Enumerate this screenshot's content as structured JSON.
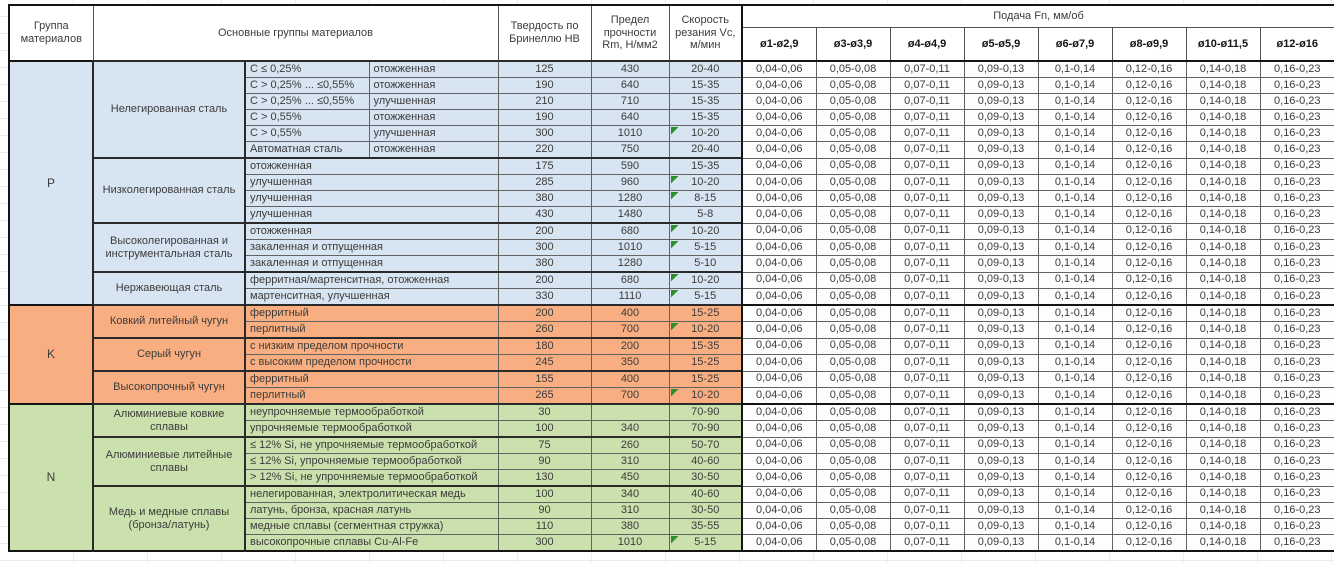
{
  "header": {
    "group_col": "Группа материалов",
    "materials_col": "Основные группы материалов",
    "hardness_col": "Твердость по Бринеллю HB",
    "strength_col": "Предел прочности Rm, Н/мм2",
    "speed_col": "Скорость резания Vc, м/мин",
    "feed_col": "Подача Fn, мм/об",
    "diameters": [
      "ø1-ø2,9",
      "ø3-ø3,9",
      "ø4-ø4,9",
      "ø5-ø5,9",
      "ø6-ø7,9",
      "ø8-ø9,9",
      "ø10-ø11,5",
      "ø12-ø16"
    ]
  },
  "feed_values": [
    "0,04-0,06",
    "0,05-0,08",
    "0,07-0,11",
    "0,09-0,13",
    "0,1-0,14",
    "0,12-0,16",
    "0,14-0,18",
    "0,16-0,23"
  ],
  "colors": {
    "group_p": "#D7E4F1",
    "group_k": "#F8AE80",
    "group_n": "#CAE0AD",
    "note_marker": "#2C8F2C"
  },
  "groups": [
    {
      "letter": "P",
      "color": "#D7E4F1",
      "subgroups": [
        {
          "name": "Нелегированная сталь",
          "rows": [
            {
              "details": [
                "C ≤ 0,25%",
                "отожженная"
              ],
              "hb": "125",
              "rm": "430",
              "vc": "20-40",
              "note": false
            },
            {
              "details": [
                "C > 0,25% ... ≤0,55%",
                "отожженная"
              ],
              "hb": "190",
              "rm": "640",
              "vc": "15-35",
              "note": false
            },
            {
              "details": [
                "C > 0,25% ... ≤0,55%",
                "улучшенная"
              ],
              "hb": "210",
              "rm": "710",
              "vc": "15-35",
              "note": false
            },
            {
              "details": [
                "C > 0,55%",
                "отожженная"
              ],
              "hb": "190",
              "rm": "640",
              "vc": "15-35",
              "note": false
            },
            {
              "details": [
                "C > 0,55%",
                "улучшенная"
              ],
              "hb": "300",
              "rm": "1010",
              "vc": "10-20",
              "note": true
            },
            {
              "details": [
                "Автоматная сталь",
                "отожженная"
              ],
              "hb": "220",
              "rm": "750",
              "vc": "20-40",
              "note": false
            }
          ]
        },
        {
          "name": "Низколегированная сталь",
          "rows": [
            {
              "details": [
                "отожженная"
              ],
              "hb": "175",
              "rm": "590",
              "vc": "15-35",
              "note": false
            },
            {
              "details": [
                "улучшенная"
              ],
              "hb": "285",
              "rm": "960",
              "vc": "10-20",
              "note": true
            },
            {
              "details": [
                "улучшенная"
              ],
              "hb": "380",
              "rm": "1280",
              "vc": "8-15",
              "note": true
            },
            {
              "details": [
                "улучшенная"
              ],
              "hb": "430",
              "rm": "1480",
              "vc": "5-8",
              "note": false
            }
          ]
        },
        {
          "name": "Высоколегированная и инструментальная сталь",
          "rows": [
            {
              "details": [
                "отожженная"
              ],
              "hb": "200",
              "rm": "680",
              "vc": "10-20",
              "note": true
            },
            {
              "details": [
                "закаленная и отпущенная"
              ],
              "hb": "300",
              "rm": "1010",
              "vc": "5-15",
              "note": true
            },
            {
              "details": [
                "закаленная и отпущенная"
              ],
              "hb": "380",
              "rm": "1280",
              "vc": "5-10",
              "note": false
            }
          ]
        },
        {
          "name": "Нержавеющая сталь",
          "rows": [
            {
              "details": [
                "ферритная/мартенситная, отожженная"
              ],
              "hb": "200",
              "rm": "680",
              "vc": "10-20",
              "note": true
            },
            {
              "details": [
                "мартенситная, улучшенная"
              ],
              "hb": "330",
              "rm": "1110",
              "vc": "5-15",
              "note": true
            }
          ]
        }
      ]
    },
    {
      "letter": "K",
      "color": "#F8AE80",
      "subgroups": [
        {
          "name": "Ковкий литейный чугун",
          "rows": [
            {
              "details": [
                "ферритный"
              ],
              "hb": "200",
              "rm": "400",
              "vc": "15-25",
              "note": false
            },
            {
              "details": [
                "перлитный"
              ],
              "hb": "260",
              "rm": "700",
              "vc": "10-20",
              "note": true
            }
          ]
        },
        {
          "name": "Серый чугун",
          "rows": [
            {
              "details": [
                "с низким пределом прочности"
              ],
              "hb": "180",
              "rm": "200",
              "vc": "15-35",
              "note": false
            },
            {
              "details": [
                "с высоким пределом прочности"
              ],
              "hb": "245",
              "rm": "350",
              "vc": "15-25",
              "note": false
            }
          ]
        },
        {
          "name": "Высокопрочный чугун",
          "rows": [
            {
              "details": [
                "ферритный"
              ],
              "hb": "155",
              "rm": "400",
              "vc": "15-25",
              "note": false
            },
            {
              "details": [
                "перлитный"
              ],
              "hb": "265",
              "rm": "700",
              "vc": "10-20",
              "note": true
            }
          ]
        }
      ]
    },
    {
      "letter": "N",
      "color": "#CAE0AD",
      "subgroups": [
        {
          "name": "Алюминиевые ковкие сплавы",
          "rows": [
            {
              "details": [
                "неупрочняемые термообработкой"
              ],
              "hb": "30",
              "rm": "",
              "vc": "70-90",
              "note": false
            },
            {
              "details": [
                "упрочняемые термообработкой"
              ],
              "hb": "100",
              "rm": "340",
              "vc": "70-90",
              "note": false
            }
          ]
        },
        {
          "name": "Алюминиевые литейные сплавы",
          "rows": [
            {
              "details": [
                "≤ 12% Si, не упрочняемые термообработкой"
              ],
              "hb": "75",
              "rm": "260",
              "vc": "50-70",
              "note": false
            },
            {
              "details": [
                "≤ 12% Si, упрочняемые термообработкой"
              ],
              "hb": "90",
              "rm": "310",
              "vc": "40-60",
              "note": false
            },
            {
              "details": [
                "> 12% Si, не упрочняемые термообработкой"
              ],
              "hb": "130",
              "rm": "450",
              "vc": "30-50",
              "note": false
            }
          ]
        },
        {
          "name": "Медь и медные сплавы (бронза/латунь)",
          "rows": [
            {
              "details": [
                "нелегированная, электролитическая медь"
              ],
              "hb": "100",
              "rm": "340",
              "vc": "40-60",
              "note": false
            },
            {
              "details": [
                "латунь, бронза, красная латунь"
              ],
              "hb": "90",
              "rm": "310",
              "vc": "30-50",
              "note": false
            },
            {
              "details": [
                "медные сплавы (сегментная стружка)"
              ],
              "hb": "110",
              "rm": "380",
              "vc": "35-55",
              "note": false
            },
            {
              "details": [
                "высокопрочные сплавы Cu-Al-Fe"
              ],
              "hb": "300",
              "rm": "1010",
              "vc": "5-15",
              "note": true
            }
          ]
        }
      ]
    }
  ]
}
